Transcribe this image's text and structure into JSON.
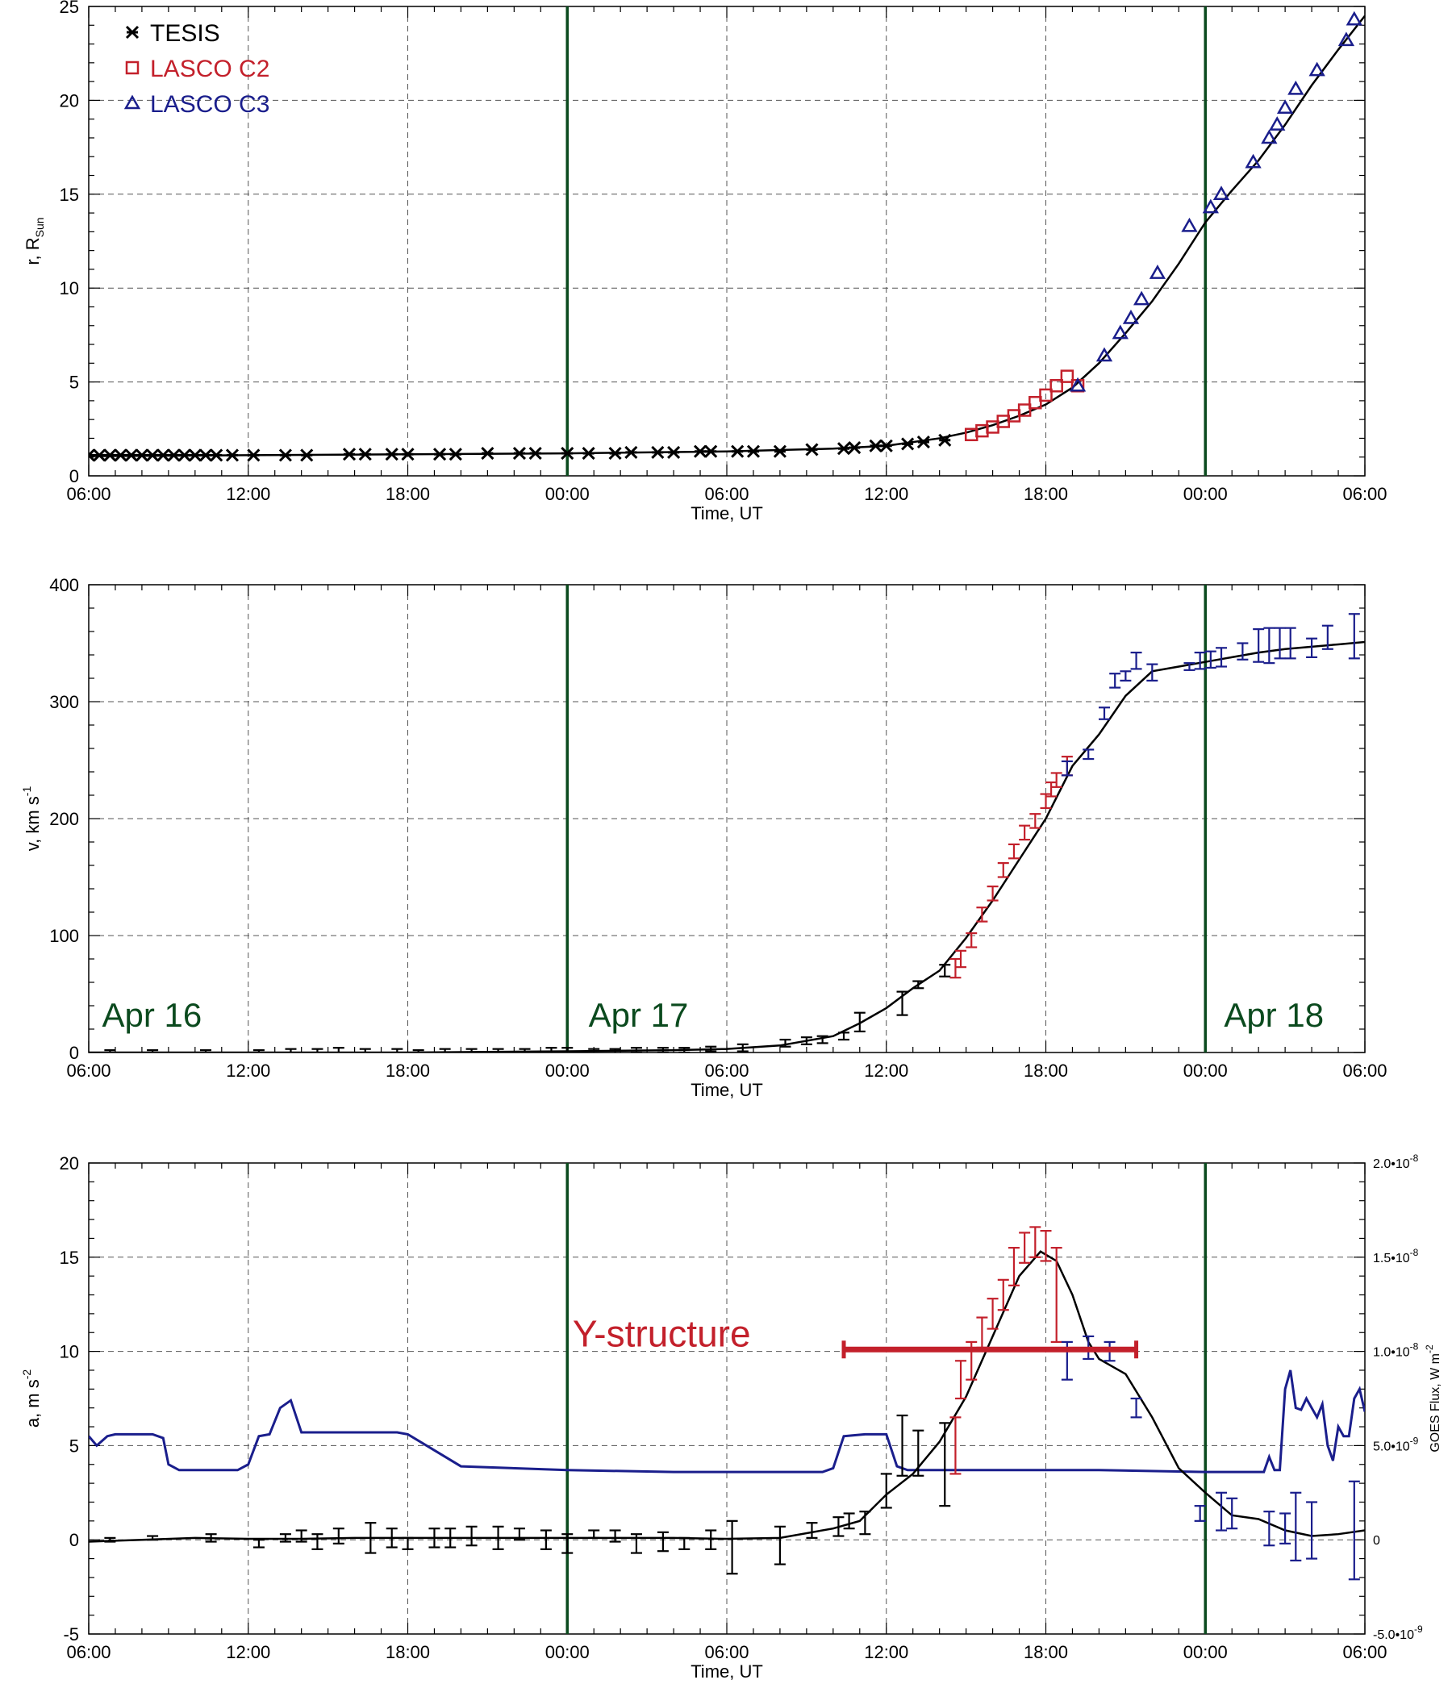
{
  "colors": {
    "tesis": "#000000",
    "c2": "#c3202b",
    "c3": "#1a1e8c",
    "day_line": "#0b4a1e",
    "fit": "#000000",
    "goes": "#1a1e8c",
    "grid": "#555555"
  },
  "time_axis": {
    "min": 0,
    "max": 48,
    "ticks": [
      {
        "v": 0,
        "label": "06:00"
      },
      {
        "v": 6,
        "label": "12:00"
      },
      {
        "v": 12,
        "label": "18:00"
      },
      {
        "v": 18,
        "label": "00:00"
      },
      {
        "v": 24,
        "label": "06:00"
      },
      {
        "v": 30,
        "label": "12:00"
      },
      {
        "v": 36,
        "label": "18:00"
      },
      {
        "v": 42,
        "label": "00:00"
      },
      {
        "v": 48,
        "label": "06:00"
      }
    ],
    "label": "Time, UT"
  },
  "day_lines": [
    18,
    42
  ],
  "day_labels": [
    {
      "t": 0.5,
      "text": "Apr 16"
    },
    {
      "t": 18.8,
      "text": "Apr 17"
    },
    {
      "t": 42.7,
      "text": "Apr 18"
    }
  ],
  "legend": [
    {
      "key": "tesis",
      "symbol": "asterisk",
      "label": "TESIS"
    },
    {
      "key": "c2",
      "symbol": "square",
      "label": "LASCO C2"
    },
    {
      "key": "c3",
      "symbol": "triangle",
      "label": "LASCO C3"
    }
  ],
  "annotation": {
    "text": "Y-structure",
    "bar_start": 28.4,
    "bar_end": 39.4,
    "bar_value": 10.1
  },
  "chart_data": [
    {
      "type": "scatter",
      "ylabel": "r, R",
      "ylabel_sub": "Sun",
      "ylim": [
        0,
        25
      ],
      "yticks": [
        0,
        5,
        10,
        15,
        20,
        25
      ],
      "grid": true,
      "legend_placement": "top-left",
      "series": [
        {
          "name": "TESIS",
          "key": "tesis",
          "symbol": "asterisk",
          "x": [
            0,
            0.4,
            0.8,
            1.2,
            1.6,
            2.0,
            2.4,
            2.8,
            3.2,
            3.6,
            4.0,
            4.4,
            4.8,
            5.4,
            6.2,
            7.4,
            8.2,
            9.8,
            10.4,
            11.4,
            12.0,
            13.2,
            13.8,
            15.0,
            16.2,
            16.8,
            18.0,
            18.8,
            19.8,
            20.4,
            21.4,
            22.0,
            23.0,
            23.4,
            24.4,
            25.0,
            26.0,
            27.2,
            28.4,
            28.8,
            29.6,
            30.0,
            30.8,
            31.4,
            32.2
          ],
          "y": [
            1.1,
            1.1,
            1.1,
            1.1,
            1.1,
            1.1,
            1.1,
            1.1,
            1.1,
            1.1,
            1.1,
            1.1,
            1.1,
            1.1,
            1.1,
            1.1,
            1.1,
            1.15,
            1.15,
            1.15,
            1.15,
            1.15,
            1.15,
            1.2,
            1.2,
            1.2,
            1.2,
            1.2,
            1.2,
            1.25,
            1.25,
            1.25,
            1.3,
            1.3,
            1.3,
            1.3,
            1.3,
            1.4,
            1.45,
            1.5,
            1.6,
            1.6,
            1.7,
            1.8,
            1.9
          ]
        },
        {
          "name": "LASCO C2",
          "key": "c2",
          "symbol": "square",
          "x": [
            33.2,
            33.6,
            34.0,
            34.4,
            34.8,
            35.2,
            35.6,
            36.0,
            36.4,
            36.8,
            37.2
          ],
          "y": [
            2.2,
            2.4,
            2.6,
            2.9,
            3.2,
            3.5,
            3.9,
            4.3,
            4.8,
            5.3,
            4.8
          ]
        },
        {
          "name": "LASCO C3",
          "key": "c3",
          "symbol": "triangle",
          "x": [
            37.2,
            38.2,
            38.8,
            39.2,
            39.6,
            40.2,
            41.4,
            42.2,
            42.6,
            43.8,
            44.4,
            44.7,
            45.0,
            45.4,
            46.2,
            47.3,
            47.6
          ],
          "y": [
            4.8,
            6.4,
            7.6,
            8.4,
            9.4,
            10.8,
            13.3,
            14.3,
            15.0,
            16.7,
            18.0,
            18.7,
            19.6,
            20.6,
            21.6,
            23.2,
            24.3
          ]
        }
      ],
      "fit": {
        "x": [
          0,
          6,
          12,
          18,
          24,
          28,
          30,
          31,
          32,
          33,
          34,
          35,
          36,
          37,
          38,
          39,
          40,
          41,
          42,
          43,
          44,
          45,
          46,
          47,
          48
        ],
        "y": [
          1.05,
          1.1,
          1.15,
          1.2,
          1.3,
          1.45,
          1.6,
          1.8,
          2.0,
          2.3,
          2.7,
          3.2,
          3.8,
          4.7,
          6.0,
          7.6,
          9.3,
          11.3,
          13.5,
          15.2,
          16.8,
          18.7,
          20.8,
          22.7,
          24.5
        ]
      }
    },
    {
      "type": "line",
      "ylabel": "v, km s",
      "ylabel_sup": "-1",
      "ylim": [
        0,
        400
      ],
      "yticks": [
        0,
        100,
        200,
        300,
        400
      ],
      "grid": true,
      "error_bars": [
        {
          "series": "tesis",
          "x": [
            0.8,
            2.4,
            4.4,
            6.4,
            7.6,
            8.6,
            9.4,
            10.4,
            11.6,
            12.4,
            13.4,
            14.4,
            15.4,
            16.4,
            17.4,
            18.0,
            19.0,
            19.8,
            20.6,
            21.6,
            22.4,
            23.4,
            24.6,
            26.2,
            27.0,
            27.6,
            28.4,
            29.0,
            30.6,
            31.2,
            32.2
          ],
          "y": [
            0,
            0,
            0,
            0,
            0,
            0,
            0,
            0,
            0,
            0,
            0,
            0,
            0,
            0,
            0,
            1,
            1,
            1,
            2,
            2,
            2,
            3,
            4,
            8,
            10,
            11,
            14,
            26,
            42,
            58,
            70
          ],
          "err": [
            2,
            2,
            2,
            2,
            3,
            3,
            4,
            3,
            3,
            2,
            3,
            3,
            3,
            3,
            4,
            3,
            2,
            2,
            2,
            2,
            2,
            2,
            3,
            3,
            3,
            3,
            3,
            8,
            10,
            3,
            5
          ]
        },
        {
          "series": "c2",
          "x": [
            32.6,
            32.8,
            33.2,
            33.6,
            34.0,
            34.4,
            34.8,
            35.2,
            35.6,
            36.0,
            36.2,
            36.4,
            36.8
          ],
          "y": [
            72,
            80,
            96,
            118,
            136,
            156,
            172,
            188,
            198,
            215,
            225,
            233,
            245
          ],
          "err": [
            8,
            7,
            6,
            6,
            6,
            6,
            6,
            6,
            6,
            6,
            6,
            6,
            8
          ]
        },
        {
          "series": "c3",
          "x": [
            36.8,
            37.6,
            38.2,
            38.6,
            39.0,
            39.4,
            40.0,
            41.4,
            41.8,
            42.2,
            42.6,
            43.4,
            44.0,
            44.4,
            44.8,
            45.2,
            46.0,
            46.6,
            47.6
          ],
          "y": [
            243,
            255,
            290,
            318,
            322,
            335,
            325,
            330,
            335,
            336,
            338,
            343,
            348,
            348,
            350,
            350,
            346,
            355,
            356
          ],
          "err": [
            6,
            4,
            5,
            6,
            4,
            7,
            7,
            3,
            7,
            7,
            8,
            7,
            14,
            15,
            13,
            13,
            8,
            10,
            19
          ]
        }
      ],
      "fit": {
        "x": [
          0,
          6,
          12,
          18,
          22,
          24,
          26,
          28,
          29,
          30,
          31,
          32,
          33,
          34,
          35,
          36,
          37,
          38,
          39,
          40,
          41,
          42,
          43,
          44,
          45,
          46,
          47,
          48
        ],
        "y": [
          0,
          0,
          0,
          1,
          2,
          3,
          6,
          14,
          25,
          38,
          55,
          70,
          98,
          130,
          165,
          200,
          245,
          272,
          305,
          326,
          330,
          334,
          338,
          342,
          345,
          347,
          349,
          351
        ]
      }
    },
    {
      "type": "line",
      "ylabel": "a, m s",
      "ylabel_sup": "-2",
      "ylim": [
        -5,
        20
      ],
      "yticks": [
        -5,
        0,
        5,
        10,
        15,
        20
      ],
      "grid": true,
      "right_axis": {
        "label": "GOES Flux, W m",
        "label_sup": "-2",
        "ticks": [
          {
            "v": -5,
            "label": "-5.0•10",
            "exp": "-9"
          },
          {
            "v": 0,
            "label": "0",
            "exp": ""
          },
          {
            "v": 5,
            "label": "5.0•10",
            "exp": "-9"
          },
          {
            "v": 10,
            "label": "1.0•10",
            "exp": "-8"
          },
          {
            "v": 15,
            "label": "1.5•10",
            "exp": "-8"
          },
          {
            "v": 20,
            "label": "2.0•10",
            "exp": "-8"
          }
        ]
      },
      "goes": {
        "x": [
          0,
          0.3,
          0.7,
          1.0,
          1.6,
          2.0,
          2.4,
          2.8,
          3.0,
          3.4,
          4.0,
          4.6,
          5.0,
          5.6,
          6.0,
          6.4,
          6.8,
          7.2,
          7.6,
          8.0,
          9.0,
          10.0,
          10.4,
          10.8,
          11.2,
          11.6,
          12.0,
          14.0,
          18.0,
          22.0,
          25.0,
          27.6,
          28.0,
          28.4,
          29.2,
          30.0,
          30.4,
          30.8,
          31.2,
          34.0,
          38.0,
          42.0,
          44.2,
          44.4,
          44.6,
          44.8,
          45.0,
          45.2,
          45.4,
          45.6,
          45.8,
          46.0,
          46.2,
          46.4,
          46.6,
          46.8,
          47.0,
          47.2,
          47.4,
          47.6,
          47.8,
          48.0
        ],
        "y": [
          5.5,
          5.0,
          5.5,
          5.6,
          5.6,
          5.6,
          5.6,
          5.4,
          4.0,
          3.7,
          3.7,
          3.7,
          3.7,
          3.7,
          4.0,
          5.5,
          5.6,
          7.0,
          7.4,
          5.7,
          5.7,
          5.7,
          5.7,
          5.7,
          5.7,
          5.7,
          5.6,
          3.9,
          3.7,
          3.6,
          3.6,
          3.6,
          3.8,
          5.5,
          5.6,
          5.6,
          3.9,
          3.7,
          3.7,
          3.7,
          3.7,
          3.6,
          3.6,
          4.4,
          3.7,
          3.7,
          8.0,
          9.0,
          7.0,
          6.9,
          7.5,
          7.0,
          6.5,
          7.2,
          5.0,
          4.2,
          6.0,
          5.5,
          5.5,
          7.5,
          8.0,
          6.8
        ]
      },
      "error_bars": [
        {
          "series": "tesis",
          "x": [
            0.8,
            2.4,
            4.6,
            6.4,
            7.4,
            8.0,
            8.6,
            9.4,
            10.6,
            11.4,
            12.0,
            13.0,
            13.6,
            14.4,
            15.4,
            16.2,
            17.2,
            18.0,
            19.0,
            19.8,
            20.6,
            21.6,
            22.4,
            23.4,
            24.2,
            26.0,
            27.2,
            28.2,
            28.6,
            29.2,
            30.0,
            30.6,
            31.2,
            32.2
          ],
          "y": [
            0,
            0.1,
            0.1,
            -0.2,
            0.1,
            0.2,
            -0.1,
            0.2,
            0.1,
            0.1,
            -0.2,
            0.1,
            0.1,
            0.2,
            0.1,
            0.3,
            0,
            -0.2,
            0.3,
            0.2,
            -0.2,
            -0.1,
            -0.2,
            0,
            -0.4,
            -0.3,
            0.5,
            0.7,
            1.0,
            0.9,
            2.6,
            5.0,
            4.6,
            4.0
          ],
          "err": [
            0.1,
            0.1,
            0.2,
            0.2,
            0.2,
            0.3,
            0.4,
            0.4,
            0.8,
            0.5,
            0.3,
            0.5,
            0.5,
            0.5,
            0.6,
            0.3,
            0.5,
            0.5,
            0.2,
            0.3,
            0.5,
            0.5,
            0.3,
            0.5,
            1.4,
            1.0,
            0.4,
            0.5,
            0.4,
            0.6,
            0.9,
            1.6,
            1.2,
            2.2
          ]
        },
        {
          "series": "c2",
          "x": [
            32.6,
            32.8,
            33.2,
            33.6,
            34.0,
            34.4,
            34.8,
            35.2,
            35.6,
            36.0,
            36.4
          ],
          "y": [
            5.0,
            8.5,
            9.5,
            11.0,
            12.0,
            13.0,
            14.5,
            15.5,
            15.8,
            15.6,
            13.0
          ],
          "err": [
            1.5,
            1.0,
            1.0,
            0.8,
            0.8,
            0.8,
            1.0,
            0.8,
            0.8,
            0.8,
            2.5
          ]
        },
        {
          "series": "c3",
          "x": [
            36.8,
            37.6,
            38.4,
            39.4,
            41.8,
            42.6,
            43.0,
            44.4,
            45.0,
            45.4,
            46.0,
            47.6
          ],
          "y": [
            9.5,
            10.2,
            10.0,
            7.0,
            1.4,
            1.5,
            1.4,
            0.6,
            0.6,
            0.7,
            0.5,
            0.5
          ],
          "err": [
            1.0,
            0.6,
            0.5,
            0.5,
            0.4,
            1.0,
            0.8,
            0.9,
            0.8,
            1.8,
            1.5,
            2.6
          ]
        }
      ],
      "fit": {
        "x": [
          0,
          2,
          4,
          6,
          8,
          10,
          12,
          14,
          16,
          18,
          20,
          22,
          24,
          26,
          28,
          29,
          30,
          31,
          32,
          33,
          34,
          35,
          35.8,
          36.4,
          37,
          37.6,
          38,
          39,
          40,
          41,
          42,
          43,
          44,
          45,
          46,
          47,
          48
        ],
        "y": [
          -0.1,
          0,
          0.1,
          0.05,
          0.05,
          0.1,
          0.1,
          0.1,
          0.1,
          0.1,
          0.1,
          0.1,
          0.05,
          0.1,
          0.6,
          1.0,
          2.4,
          3.5,
          5.2,
          7.6,
          10.8,
          14.0,
          15.3,
          14.8,
          13.0,
          10.5,
          9.6,
          8.8,
          6.5,
          3.8,
          2.5,
          1.3,
          1.1,
          0.5,
          0.2,
          0.3,
          0.5
        ]
      }
    }
  ]
}
